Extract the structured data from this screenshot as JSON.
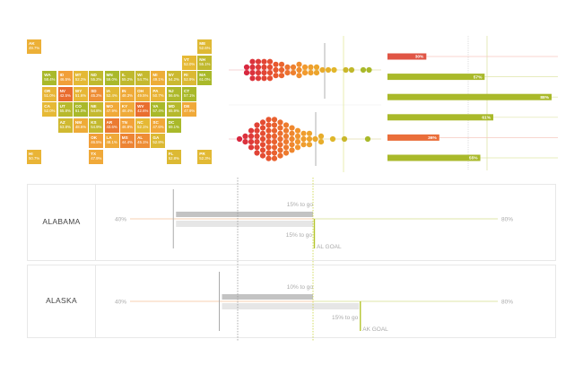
{
  "colors": {
    "low": "#e8662e",
    "mid": "#f2a53a",
    "mid2": "#e6b935",
    "high": "#a9b92a",
    "goal": "#c8d43a",
    "swarm_red": "#d8283f"
  },
  "chart_data": [
    {
      "type": "heatmap",
      "title": "",
      "tiles": [
        {
          "state": "AK",
          "value": "49.7%",
          "v": 49.7,
          "col": 0,
          "row": 0
        },
        {
          "state": "ME",
          "value": "52.6%",
          "v": 52.6,
          "col": 11,
          "row": 0
        },
        {
          "state": "VT",
          "value": "52.0%",
          "v": 52.0,
          "col": 10,
          "row": 1
        },
        {
          "state": "NH",
          "value": "55.1%",
          "v": 55.1,
          "col": 11,
          "row": 1
        },
        {
          "state": "WA",
          "value": "58.4%",
          "v": 58.4,
          "col": 1,
          "row": 2
        },
        {
          "state": "ID",
          "value": "46.5%",
          "v": 46.5,
          "col": 2,
          "row": 2
        },
        {
          "state": "MT",
          "value": "52.2%",
          "v": 52.2,
          "col": 3,
          "row": 2
        },
        {
          "state": "ND",
          "value": "55.2%",
          "v": 55.2,
          "col": 4,
          "row": 2
        },
        {
          "state": "MN",
          "value": "59.0%",
          "v": 59.0,
          "col": 5,
          "row": 2
        },
        {
          "state": "IL",
          "value": "55.2%",
          "v": 55.2,
          "col": 6,
          "row": 2
        },
        {
          "state": "WI",
          "value": "54.7%",
          "v": 54.7,
          "col": 7,
          "row": 2
        },
        {
          "state": "MI",
          "value": "49.1%",
          "v": 49.1,
          "col": 8,
          "row": 2
        },
        {
          "state": "NY",
          "value": "54.2%",
          "v": 54.2,
          "col": 9,
          "row": 2
        },
        {
          "state": "RI",
          "value": "52.9%",
          "v": 52.9,
          "col": 10,
          "row": 2
        },
        {
          "state": "MA",
          "value": "61.0%",
          "v": 61.0,
          "col": 11,
          "row": 2
        },
        {
          "state": "OR",
          "value": "51.0%",
          "v": 51.0,
          "col": 1,
          "row": 3
        },
        {
          "state": "NV",
          "value": "42.5%",
          "v": 42.5,
          "col": 2,
          "row": 3
        },
        {
          "state": "WY",
          "value": "51.6%",
          "v": 51.6,
          "col": 3,
          "row": 3
        },
        {
          "state": "SD",
          "value": "45.2%",
          "v": 45.2,
          "col": 4,
          "row": 3
        },
        {
          "state": "IA",
          "value": "52.4%",
          "v": 52.4,
          "col": 5,
          "row": 3
        },
        {
          "state": "IN",
          "value": "48.3%",
          "v": 48.3,
          "col": 6,
          "row": 3
        },
        {
          "state": "OH",
          "value": "49.5%",
          "v": 49.5,
          "col": 7,
          "row": 3
        },
        {
          "state": "PA",
          "value": "50.7%",
          "v": 50.7,
          "col": 8,
          "row": 3
        },
        {
          "state": "NJ",
          "value": "56.6%",
          "v": 56.6,
          "col": 9,
          "row": 3
        },
        {
          "state": "CT",
          "value": "57.1%",
          "v": 57.1,
          "col": 10,
          "row": 3
        },
        {
          "state": "CA",
          "value": "52.0%",
          "v": 52.0,
          "col": 1,
          "row": 4
        },
        {
          "state": "UT",
          "value": "55.8%",
          "v": 55.8,
          "col": 2,
          "row": 4
        },
        {
          "state": "CO",
          "value": "61.0%",
          "v": 61.0,
          "col": 3,
          "row": 4
        },
        {
          "state": "NE",
          "value": "54.8%",
          "v": 54.8,
          "col": 4,
          "row": 4
        },
        {
          "state": "MO",
          "value": "47.9%",
          "v": 47.9,
          "col": 5,
          "row": 4
        },
        {
          "state": "KY",
          "value": "48.4%",
          "v": 48.4,
          "col": 6,
          "row": 4
        },
        {
          "state": "WV",
          "value": "42.6%",
          "v": 42.6,
          "col": 7,
          "row": 4
        },
        {
          "state": "VA",
          "value": "57.4%",
          "v": 57.4,
          "col": 8,
          "row": 4
        },
        {
          "state": "MD",
          "value": "55.9%",
          "v": 55.9,
          "col": 9,
          "row": 4
        },
        {
          "state": "DE",
          "value": "47.9%",
          "v": 47.9,
          "col": 10,
          "row": 4
        },
        {
          "state": "AZ",
          "value": "53.8%",
          "v": 53.8,
          "col": 2,
          "row": 5
        },
        {
          "state": "NM",
          "value": "48.6%",
          "v": 48.6,
          "col": 3,
          "row": 5
        },
        {
          "state": "KS",
          "value": "54.9%",
          "v": 54.9,
          "col": 4,
          "row": 5
        },
        {
          "state": "AR",
          "value": "43.6%",
          "v": 43.6,
          "col": 5,
          "row": 5
        },
        {
          "state": "TN",
          "value": "46.8%",
          "v": 46.8,
          "col": 6,
          "row": 5
        },
        {
          "state": "NC",
          "value": "52.1%",
          "v": 52.1,
          "col": 7,
          "row": 5
        },
        {
          "state": "SC",
          "value": "47.6%",
          "v": 47.6,
          "col": 8,
          "row": 5
        },
        {
          "state": "DC",
          "value": "69.1%",
          "v": 69.1,
          "col": 9,
          "row": 5
        },
        {
          "state": "OK",
          "value": "46.5%",
          "v": 46.5,
          "col": 4,
          "row": 6
        },
        {
          "state": "LA",
          "value": "48.1%",
          "v": 48.1,
          "col": 5,
          "row": 6
        },
        {
          "state": "MS",
          "value": "44.4%",
          "v": 44.4,
          "col": 6,
          "row": 6
        },
        {
          "state": "AL",
          "value": "45.1%",
          "v": 45.1,
          "col": 7,
          "row": 6
        },
        {
          "state": "GA",
          "value": "52.8%",
          "v": 52.8,
          "col": 8,
          "row": 6
        },
        {
          "state": "HI",
          "value": "50.7%",
          "v": 50.7,
          "col": 0,
          "row": 7
        },
        {
          "state": "TX",
          "value": "47.9%",
          "v": 47.9,
          "col": 4,
          "row": 7
        },
        {
          "state": "FL",
          "value": "52.8%",
          "v": 52.8,
          "col": 9,
          "row": 7
        },
        {
          "state": "PR",
          "value": "52.3%",
          "v": 52.3,
          "col": 11,
          "row": 7
        }
      ]
    },
    {
      "type": "scatter",
      "title": "",
      "swarms": [
        {
          "bin_counts": [
            2,
            4,
            4,
            4,
            4,
            3,
            3,
            2,
            2,
            3,
            2,
            2,
            2,
            1,
            1,
            1,
            0,
            1,
            1,
            0,
            1,
            1
          ]
        },
        {
          "bin_counts": [
            1,
            2,
            4,
            6,
            7,
            8,
            8,
            7,
            6,
            5,
            4,
            3,
            3,
            1,
            2,
            0,
            1,
            0,
            1,
            0,
            0,
            0,
            1
          ]
        }
      ]
    },
    {
      "type": "bar",
      "title": "",
      "values": [
        30,
        57,
        88,
        61,
        36,
        55
      ],
      "labels": [
        "30%",
        "57%",
        "88%",
        "61%",
        "36%",
        "55%"
      ],
      "status": [
        "below",
        "above",
        "above",
        "above",
        "below",
        "above"
      ]
    },
    {
      "type": "bar",
      "title": "",
      "xlim": [
        40,
        80
      ],
      "axis_labels": {
        "min": "40%",
        "max": "80%"
      },
      "panels": [
        {
          "state": "ALABAMA",
          "current": 45,
          "national_goal": 60,
          "state_goal": 60,
          "to_go_top": "15% to go",
          "to_go_bottom": "15% to go",
          "goal_label": "AL GOAL"
        },
        {
          "state": "ALASKA",
          "current": 50,
          "national_goal": 60,
          "state_goal": 65,
          "to_go_top": "10% to go",
          "to_go_bottom": "15% to go",
          "goal_label": "AK GOAL"
        }
      ]
    }
  ]
}
